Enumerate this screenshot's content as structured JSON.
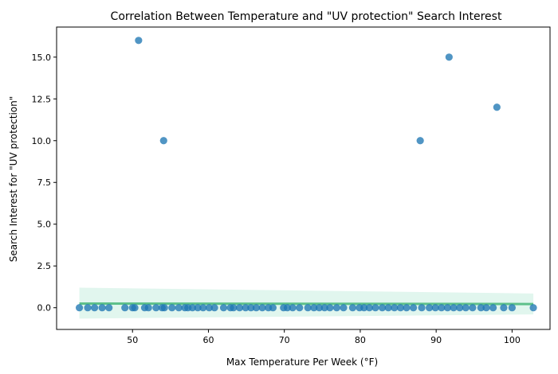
{
  "chart_data": {
    "type": "scatter",
    "title": "Correlation Between Temperature and \"UV protection\" Search Interest",
    "xlabel": "Max Temperature Per Week (°F)",
    "ylabel": "Search Interest for \"UV protection\"",
    "xlim": [
      40,
      105
    ],
    "ylim": [
      -1.3,
      16.8
    ],
    "x_ticks": [
      "50",
      "60",
      "70",
      "80",
      "90",
      "100"
    ],
    "y_ticks": [
      "0.0",
      "2.5",
      "5.0",
      "7.5",
      "10.0",
      "12.5",
      "15.0"
    ],
    "x_tick_values": [
      50,
      60,
      70,
      80,
      90,
      100
    ],
    "y_tick_values": [
      0,
      2.5,
      5,
      7.5,
      10,
      12.5,
      15
    ],
    "grid": false,
    "legend": "none",
    "colors": {
      "points": "#1f77b4",
      "trend": "#3cb371",
      "band": "#a8e6cf"
    },
    "points": [
      {
        "x": 50.8,
        "y": 16
      },
      {
        "x": 54.1,
        "y": 10
      },
      {
        "x": 87.9,
        "y": 10
      },
      {
        "x": 91.7,
        "y": 15
      },
      {
        "x": 98.0,
        "y": 12
      },
      {
        "x": 43.0,
        "y": 0
      },
      {
        "x": 44.1,
        "y": 0
      },
      {
        "x": 45.0,
        "y": 0
      },
      {
        "x": 46.0,
        "y": 0
      },
      {
        "x": 46.9,
        "y": 0
      },
      {
        "x": 49.0,
        "y": 0
      },
      {
        "x": 50.0,
        "y": 0
      },
      {
        "x": 50.3,
        "y": 0
      },
      {
        "x": 51.6,
        "y": 0
      },
      {
        "x": 52.1,
        "y": 0
      },
      {
        "x": 53.1,
        "y": 0
      },
      {
        "x": 53.9,
        "y": 0
      },
      {
        "x": 54.2,
        "y": 0
      },
      {
        "x": 55.2,
        "y": 0
      },
      {
        "x": 56.1,
        "y": 0
      },
      {
        "x": 56.9,
        "y": 0
      },
      {
        "x": 57.3,
        "y": 0
      },
      {
        "x": 57.9,
        "y": 0
      },
      {
        "x": 58.6,
        "y": 0
      },
      {
        "x": 59.3,
        "y": 0
      },
      {
        "x": 60.1,
        "y": 0
      },
      {
        "x": 60.8,
        "y": 0
      },
      {
        "x": 62.0,
        "y": 0
      },
      {
        "x": 62.9,
        "y": 0
      },
      {
        "x": 63.3,
        "y": 0
      },
      {
        "x": 64.1,
        "y": 0
      },
      {
        "x": 64.9,
        "y": 0
      },
      {
        "x": 65.6,
        "y": 0
      },
      {
        "x": 66.3,
        "y": 0
      },
      {
        "x": 67.1,
        "y": 0
      },
      {
        "x": 67.9,
        "y": 0
      },
      {
        "x": 68.5,
        "y": 0
      },
      {
        "x": 69.9,
        "y": 0
      },
      {
        "x": 70.4,
        "y": 0
      },
      {
        "x": 71.1,
        "y": 0
      },
      {
        "x": 72.0,
        "y": 0
      },
      {
        "x": 73.1,
        "y": 0
      },
      {
        "x": 73.9,
        "y": 0
      },
      {
        "x": 74.6,
        "y": 0
      },
      {
        "x": 75.3,
        "y": 0
      },
      {
        "x": 76.0,
        "y": 0
      },
      {
        "x": 76.9,
        "y": 0
      },
      {
        "x": 77.8,
        "y": 0
      },
      {
        "x": 79.0,
        "y": 0
      },
      {
        "x": 79.9,
        "y": 0
      },
      {
        "x": 80.5,
        "y": 0
      },
      {
        "x": 81.2,
        "y": 0
      },
      {
        "x": 82.0,
        "y": 0
      },
      {
        "x": 82.9,
        "y": 0
      },
      {
        "x": 83.7,
        "y": 0
      },
      {
        "x": 84.5,
        "y": 0
      },
      {
        "x": 85.3,
        "y": 0
      },
      {
        "x": 86.1,
        "y": 0
      },
      {
        "x": 87.0,
        "y": 0
      },
      {
        "x": 88.1,
        "y": 0
      },
      {
        "x": 89.1,
        "y": 0
      },
      {
        "x": 89.9,
        "y": 0
      },
      {
        "x": 90.7,
        "y": 0
      },
      {
        "x": 91.5,
        "y": 0
      },
      {
        "x": 92.3,
        "y": 0
      },
      {
        "x": 93.1,
        "y": 0
      },
      {
        "x": 93.9,
        "y": 0
      },
      {
        "x": 94.8,
        "y": 0
      },
      {
        "x": 95.9,
        "y": 0
      },
      {
        "x": 96.6,
        "y": 0
      },
      {
        "x": 97.5,
        "y": 0
      },
      {
        "x": 98.9,
        "y": 0
      },
      {
        "x": 100.0,
        "y": 0
      },
      {
        "x": 102.8,
        "y": 0
      }
    ],
    "trend": {
      "x_start": 43.0,
      "x_end": 102.8,
      "y_start": 0.25,
      "y_end": 0.22,
      "band_upper_start": 1.2,
      "band_upper_end": 0.85,
      "band_lower_start": -0.65,
      "band_lower_end": -0.4
    }
  }
}
